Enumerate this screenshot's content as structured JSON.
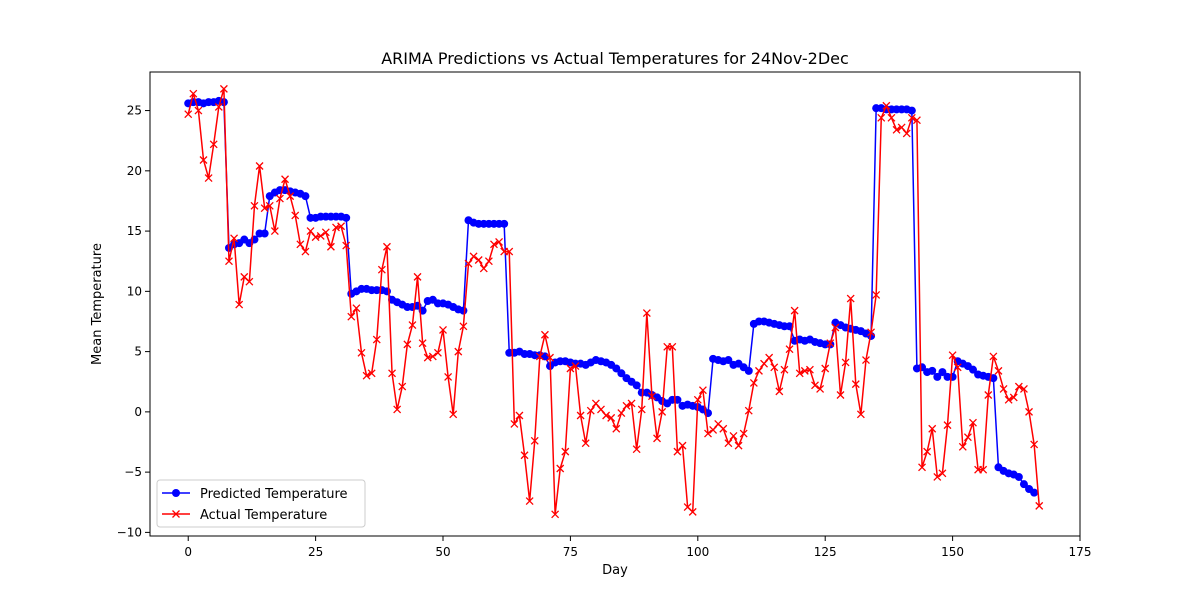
{
  "chart_data": {
    "type": "line",
    "title": "ARIMA Predictions vs Actual Temperatures for 24Nov-2Dec",
    "xlabel": "Day",
    "ylabel": "Mean Temperature",
    "xlim": [
      -7.5,
      175
    ],
    "ylim": [
      -10.3,
      28.2
    ],
    "xticks": [
      0,
      25,
      50,
      75,
      100,
      125,
      150,
      175
    ],
    "yticks": [
      -10,
      -5,
      0,
      5,
      10,
      15,
      20,
      25
    ],
    "grid": false,
    "legend_position": "lower-left",
    "series": [
      {
        "name": "Predicted Temperature",
        "color": "#0000ff",
        "marker": "circle",
        "values": [
          25.6,
          25.7,
          25.7,
          25.6,
          25.7,
          25.7,
          25.8,
          25.7,
          13.6,
          13.9,
          14.0,
          14.3,
          14.0,
          14.3,
          14.8,
          14.8,
          17.9,
          18.2,
          18.4,
          18.4,
          18.3,
          18.2,
          18.1,
          17.9,
          16.1,
          16.1,
          16.2,
          16.2,
          16.2,
          16.2,
          16.2,
          16.1,
          9.8,
          10.0,
          10.2,
          10.2,
          10.1,
          10.1,
          10.1,
          10.0,
          9.3,
          9.1,
          8.9,
          8.7,
          8.7,
          8.8,
          8.4,
          9.2,
          9.3,
          9.0,
          9.0,
          8.9,
          8.7,
          8.5,
          8.4,
          15.9,
          15.7,
          15.6,
          15.6,
          15.6,
          15.6,
          15.6,
          15.6,
          4.9,
          4.9,
          5.0,
          4.8,
          4.8,
          4.7,
          4.7,
          4.6,
          3.8,
          4.1,
          4.2,
          4.2,
          4.1,
          4.0,
          4.0,
          3.9,
          4.1,
          4.3,
          4.2,
          4.1,
          3.9,
          3.6,
          3.2,
          2.8,
          2.5,
          2.2,
          1.6,
          1.6,
          1.4,
          1.2,
          0.9,
          0.7,
          1.0,
          1.0,
          0.5,
          0.6,
          0.5,
          0.4,
          0.2,
          -0.1,
          4.4,
          4.3,
          4.2,
          4.3,
          3.9,
          4.0,
          3.7,
          3.4,
          7.3,
          7.5,
          7.5,
          7.4,
          7.3,
          7.2,
          7.1,
          7.1,
          5.9,
          6.0,
          5.9,
          6.0,
          5.8,
          5.7,
          5.6,
          5.6,
          7.4,
          7.2,
          7.0,
          6.9,
          6.8,
          6.7,
          6.5,
          6.3,
          25.2,
          25.2,
          25.1,
          25.1,
          25.1,
          25.1,
          25.1,
          25.0,
          3.6,
          3.7,
          3.3,
          3.4,
          2.9,
          3.3,
          2.9,
          2.9,
          4.2,
          4.0,
          3.8,
          3.5,
          3.1,
          3.0,
          2.9,
          2.8,
          -4.6,
          -4.9,
          -5.1,
          -5.2,
          -5.4,
          -6.0,
          -6.4,
          -6.7
        ]
      },
      {
        "name": "Actual Temperature",
        "color": "#ff0000",
        "marker": "x",
        "values": [
          24.7,
          26.4,
          25.0,
          20.9,
          19.4,
          22.2,
          25.3,
          26.8,
          12.5,
          14.4,
          8.9,
          11.2,
          10.8,
          17.1,
          20.4,
          16.9,
          17.1,
          15.0,
          17.7,
          19.3,
          17.9,
          16.3,
          13.9,
          13.3,
          15.0,
          14.5,
          14.6,
          14.9,
          13.7,
          15.3,
          15.4,
          13.8,
          7.9,
          8.6,
          4.9,
          3.0,
          3.2,
          6.0,
          11.8,
          13.7,
          3.2,
          0.2,
          2.1,
          5.6,
          7.2,
          11.2,
          5.7,
          4.5,
          4.6,
          4.9,
          6.8,
          2.9,
          -0.2,
          5.0,
          7.1,
          12.3,
          12.9,
          12.6,
          11.9,
          12.5,
          13.9,
          14.1,
          13.3,
          13.3,
          -1.0,
          -0.3,
          -3.6,
          -7.4,
          -2.4,
          4.6,
          6.4,
          4.5,
          -8.5,
          -4.7,
          -3.3,
          3.6,
          3.8,
          -0.3,
          -2.6,
          0.1,
          0.7,
          0.2,
          -0.3,
          -0.5,
          -1.4,
          -0.1,
          0.5,
          0.7,
          -3.1,
          0.2,
          8.2,
          1.3,
          -2.2,
          0.0,
          5.4,
          5.4,
          -3.3,
          -2.8,
          -7.9,
          -8.3,
          1.0,
          1.8,
          -1.8,
          -1.5,
          -1.0,
          -1.4,
          -2.6,
          -2.0,
          -2.8,
          -1.8,
          0.1,
          2.4,
          3.4,
          4.0,
          4.5,
          3.7,
          1.7,
          3.5,
          5.2,
          8.4,
          3.2,
          3.4,
          3.5,
          2.2,
          1.9,
          3.6,
          5.7,
          7.0,
          1.4,
          4.1,
          9.4,
          2.3,
          -0.2,
          4.3,
          6.6,
          9.7,
          24.4,
          25.4,
          24.4,
          23.4,
          23.6,
          23.1,
          24.4,
          24.2,
          -4.6,
          -3.3,
          -1.4,
          -5.4,
          -5.1,
          -1.1,
          4.7,
          3.7,
          -2.9,
          -2.1,
          -0.9,
          -4.8,
          -4.8,
          1.4,
          4.6,
          3.4,
          1.9,
          1.0,
          1.2,
          2.1,
          1.9,
          0.0,
          -2.7,
          -7.8
        ]
      }
    ]
  }
}
